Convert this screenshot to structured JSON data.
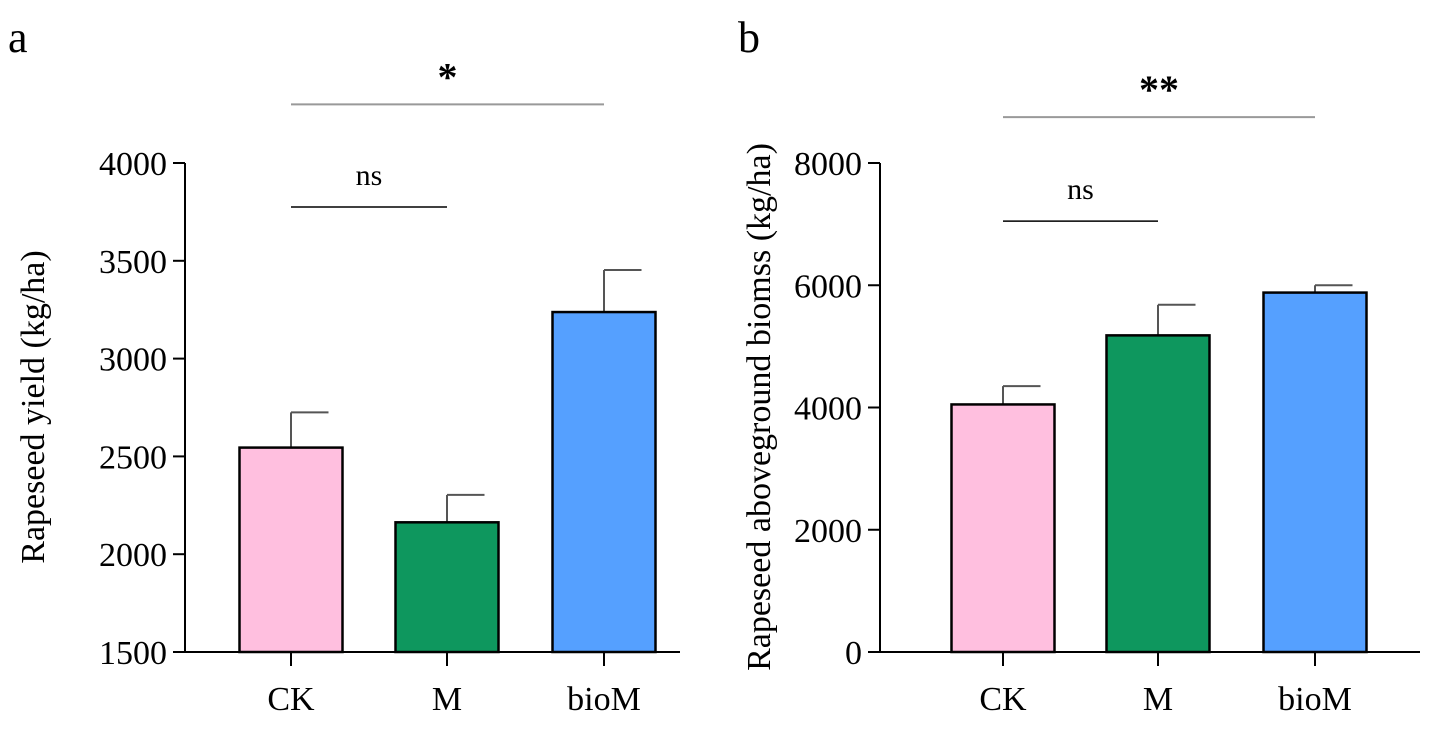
{
  "chart_data": [
    {
      "type": "bar",
      "panel": "a",
      "categories": [
        "CK",
        "M",
        "bioM"
      ],
      "values": [
        2545,
        2163,
        3238
      ],
      "errors": [
        180,
        140,
        215
      ],
      "colors": [
        "#FFBFDF",
        "#0E975E",
        "#55A0FF"
      ],
      "ylabel": "Rapeseed yield (kg/ha)",
      "xlabel": "",
      "ylim": [
        1500,
        4000
      ],
      "yticks": [
        1500,
        2000,
        2500,
        3000,
        3500,
        4000
      ],
      "grid": false,
      "comparisons": [
        {
          "from": "CK",
          "to": "M",
          "label": "ns",
          "level": 3775
        },
        {
          "from": "CK",
          "to": "bioM",
          "label": "*",
          "level": 4300
        }
      ]
    },
    {
      "type": "bar",
      "panel": "b",
      "categories": [
        "CK",
        "M",
        "bioM"
      ],
      "values": [
        4050,
        5180,
        5880
      ],
      "errors": [
        300,
        500,
        120
      ],
      "colors": [
        "#FFBFDF",
        "#0E975E",
        "#55A0FF"
      ],
      "ylabel": "Rapeseed aboveground biomss (kg/ha)",
      "xlabel": "",
      "ylim": [
        0,
        8000
      ],
      "yticks": [
        0,
        2000,
        4000,
        6000,
        8000
      ],
      "grid": false,
      "comparisons": [
        {
          "from": "CK",
          "to": "M",
          "label": "ns",
          "level": 7050
        },
        {
          "from": "CK",
          "to": "bioM",
          "label": "**",
          "level": 8750
        }
      ]
    }
  ]
}
